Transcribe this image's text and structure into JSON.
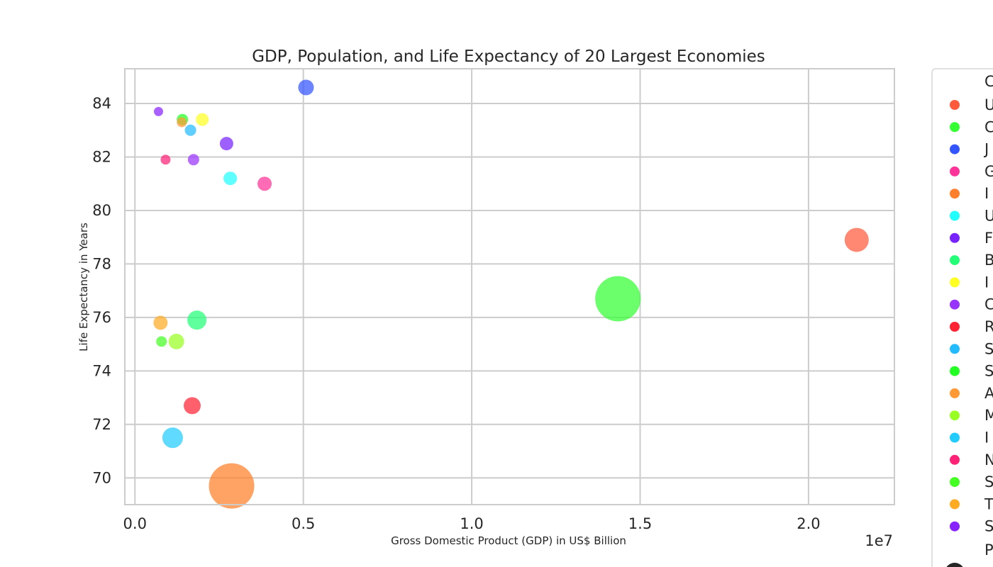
{
  "chart_data": {
    "type": "scatter",
    "title": "GDP, Population, and Life Expectancy of 20 Largest Economies",
    "xlabel": "Gross Domestic Product (GDP) in US$ Billion",
    "ylabel": "Life Expectancy in Years",
    "x_offset_text": "1e7",
    "x_scale_factor": 10000000,
    "xlim": [
      -0.03,
      2.255
    ],
    "ylim": [
      69.0,
      85.3
    ],
    "x_ticks": [
      0.0,
      0.5,
      1.0,
      1.5,
      2.0
    ],
    "x_tick_labels": [
      "0.0",
      "0.5",
      "1.0",
      "1.5",
      "2.0"
    ],
    "y_ticks": [
      70,
      72,
      74,
      76,
      78,
      80,
      82,
      84
    ],
    "y_tick_labels": [
      "70",
      "72",
      "74",
      "76",
      "78",
      "80",
      "82",
      "84"
    ],
    "grid": true,
    "legend": {
      "placement": "right, outside plot (cropped)",
      "header_visible": "C",
      "footer_visible": "P",
      "entries_visible": [
        "U",
        "C",
        "J",
        "G",
        "I",
        "U",
        "F",
        "B",
        "I",
        "C",
        "R",
        "S",
        "S",
        "A",
        "M",
        "I",
        "N",
        "S",
        "T",
        "S"
      ]
    },
    "points": [
      {
        "gdp": 21.43,
        "life": 78.9,
        "size": 17,
        "color": "#ff5a3c"
      },
      {
        "gdp": 14.34,
        "life": 76.7,
        "size": 32,
        "color": "#33ff33"
      },
      {
        "gdp": 5.08,
        "life": 84.6,
        "size": 11,
        "color": "#3355ff"
      },
      {
        "gdp": 3.85,
        "life": 81.0,
        "size": 10,
        "color": "#ff3399"
      },
      {
        "gdp": 2.87,
        "life": 69.7,
        "size": 32,
        "color": "#ff7f2a"
      },
      {
        "gdp": 2.83,
        "life": 81.2,
        "size": 9.5,
        "color": "#22ffff"
      },
      {
        "gdp": 2.72,
        "life": 82.5,
        "size": 9.5,
        "color": "#7722ff"
      },
      {
        "gdp": 1.84,
        "life": 75.9,
        "size": 13.5,
        "color": "#22ff77"
      },
      {
        "gdp": 2.0,
        "life": 83.4,
        "size": 9,
        "color": "#ffff22"
      },
      {
        "gdp": 1.74,
        "life": 81.9,
        "size": 8,
        "color": "#9933ff"
      },
      {
        "gdp": 1.7,
        "life": 72.7,
        "size": 12,
        "color": "#ff2233"
      },
      {
        "gdp": 1.65,
        "life": 83.0,
        "size": 8,
        "color": "#22bbff"
      },
      {
        "gdp": 1.41,
        "life": 83.4,
        "size": 8,
        "color": "#22ff22"
      },
      {
        "gdp": 1.39,
        "life": 83.3,
        "size": 7,
        "color": "#ff9933"
      },
      {
        "gdp": 1.23,
        "life": 75.1,
        "size": 11,
        "color": "#99ff22"
      },
      {
        "gdp": 1.12,
        "life": 71.5,
        "size": 14.5,
        "color": "#22ccff"
      },
      {
        "gdp": 0.91,
        "life": 81.9,
        "size": 7,
        "color": "#ff2277"
      },
      {
        "gdp": 0.79,
        "life": 75.1,
        "size": 7.5,
        "color": "#44ff22"
      },
      {
        "gdp": 0.76,
        "life": 75.8,
        "size": 10,
        "color": "#ffaa22"
      },
      {
        "gdp": 0.7,
        "life": 83.7,
        "size": 6.5,
        "color": "#8822ff"
      }
    ]
  }
}
